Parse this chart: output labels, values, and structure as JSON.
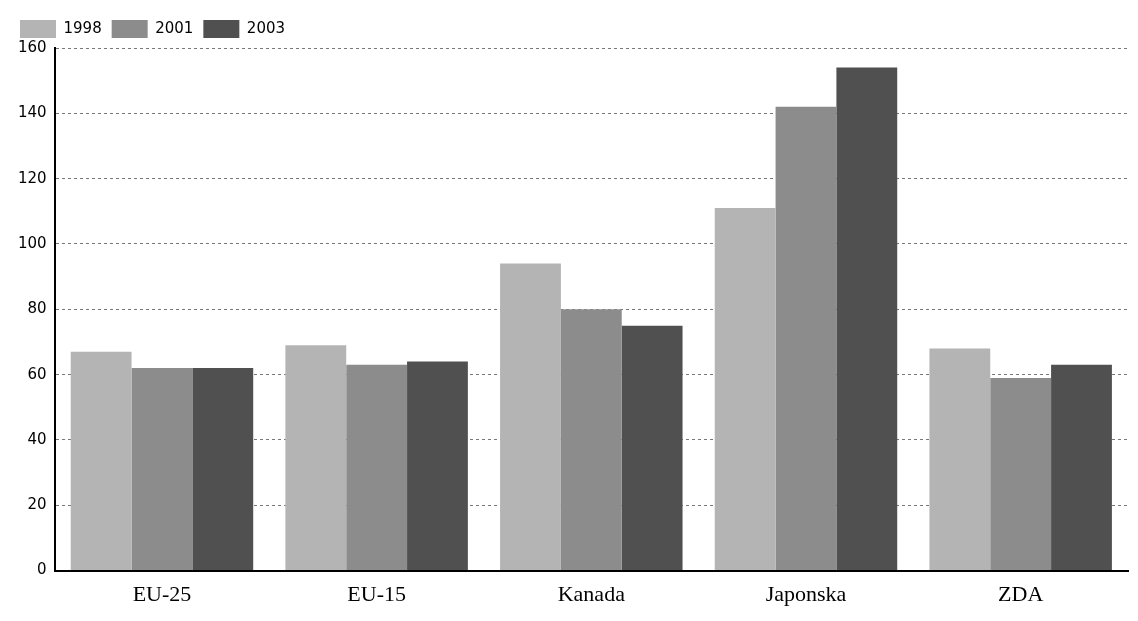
{
  "chart_data": {
    "type": "bar",
    "categories": [
      "EU-25",
      "EU-15",
      "Kanada",
      "Japonska",
      "ZDA"
    ],
    "series": [
      {
        "name": "1998",
        "color": "#b4b4b4",
        "values": [
          67,
          69,
          94,
          111,
          68
        ]
      },
      {
        "name": "2001",
        "color": "#8c8c8c",
        "values": [
          62,
          63,
          80,
          142,
          59
        ]
      },
      {
        "name": "2003",
        "color": "#505050",
        "values": [
          62,
          64,
          75,
          154,
          63
        ]
      }
    ],
    "ylim": [
      0,
      160
    ],
    "yticks": [
      0,
      20,
      40,
      60,
      80,
      100,
      120,
      140,
      160
    ],
    "grid": "y",
    "legend": "top left"
  }
}
